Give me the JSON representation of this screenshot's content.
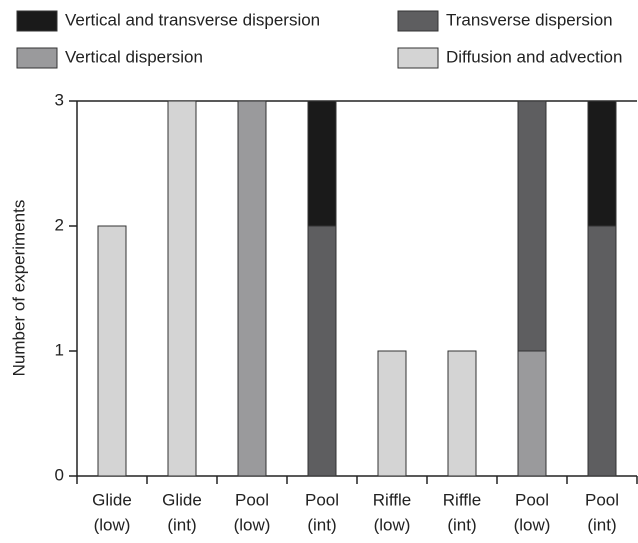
{
  "chart_data": {
    "type": "stacked_bar",
    "y_label": "Number of experiments",
    "categories": [
      [
        "Glide",
        "(low)"
      ],
      [
        "Glide",
        "(int)"
      ],
      [
        "Pool",
        "(low)"
      ],
      [
        "Pool",
        "(int)"
      ],
      [
        "Riffle",
        "(low)"
      ],
      [
        "Riffle",
        "(int)"
      ],
      [
        "Pool",
        "(low)"
      ],
      [
        "Pool",
        "(int)"
      ]
    ],
    "series": [
      {
        "name": "Diffusion and advection",
        "color": "#d4d4d4",
        "values": [
          2,
          3,
          0,
          0,
          1,
          1,
          0,
          0
        ]
      },
      {
        "name": "Vertical dispersion",
        "color": "#9a9a9c",
        "values": [
          0,
          0,
          3,
          0,
          0,
          0,
          1,
          0
        ]
      },
      {
        "name": "Transverse dispersion",
        "color": "#5e5e60",
        "values": [
          0,
          0,
          0,
          2,
          0,
          0,
          2,
          2
        ]
      },
      {
        "name": "Vertical and transverse dispersion",
        "color": "#1a1a1a",
        "values": [
          0,
          0,
          0,
          1,
          0,
          0,
          0,
          1
        ]
      }
    ],
    "ylim": [
      0,
      3
    ],
    "yticks": [
      0,
      1,
      2,
      3
    ]
  }
}
